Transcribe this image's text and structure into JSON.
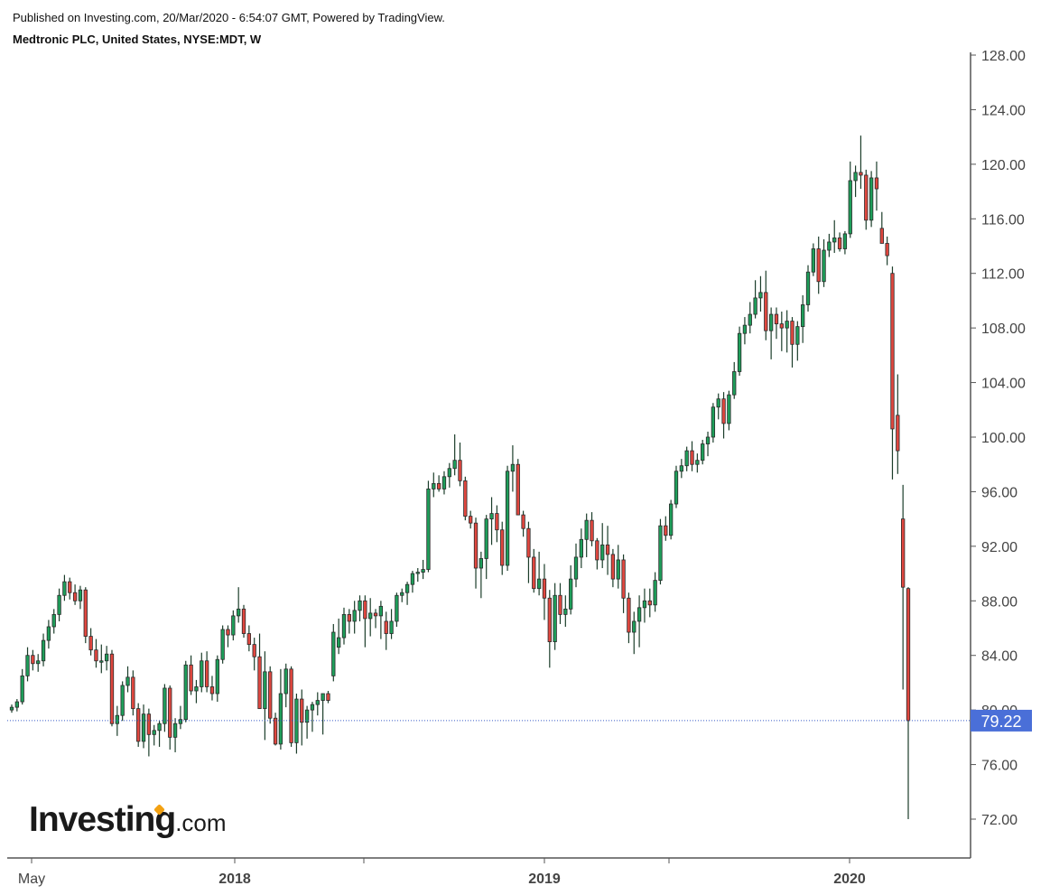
{
  "header": {
    "published": "Published on Investing.com, 20/Mar/2020 - 6:54:07 GMT, Powered by TradingView.",
    "title": "Medtronic PLC, United States, NYSE:MDT, W"
  },
  "logo": {
    "brand": "Investing",
    "tld": ".com",
    "accent_color": "#f3a112"
  },
  "colors": {
    "up": "#1e9e5a",
    "down": "#e0473f",
    "wick": "#1b3d2a",
    "last_price_bg": "#4a6fd8",
    "last_price_line": "#3a5cc8"
  },
  "chart_data": {
    "type": "candlestick",
    "interval": "W",
    "symbol": "NYSE:MDT",
    "ylim": [
      69,
      128
    ],
    "y_ticks": [
      "128.00",
      "124.00",
      "120.00",
      "116.00",
      "112.00",
      "108.00",
      "104.00",
      "100.00",
      "96.00",
      "92.00",
      "88.00",
      "84.00",
      "80.00",
      "76.00",
      "72.00"
    ],
    "x_labels": [
      {
        "text": "May",
        "bold": false
      },
      {
        "text": "2018",
        "bold": true
      },
      {
        "text": "2019",
        "bold": true
      },
      {
        "text": "2020",
        "bold": true
      }
    ],
    "last_price": "79.22",
    "candles": [
      [
        80.0,
        80.4,
        79.8,
        80.2
      ],
      [
        80.2,
        80.8,
        79.9,
        80.6
      ],
      [
        80.6,
        83.0,
        80.4,
        82.5
      ],
      [
        82.5,
        84.6,
        82.1,
        84.0
      ],
      [
        84.0,
        84.4,
        82.9,
        83.4
      ],
      [
        83.4,
        84.1,
        82.8,
        83.6
      ],
      [
        83.6,
        85.6,
        83.2,
        85.1
      ],
      [
        85.1,
        86.6,
        84.5,
        86.1
      ],
      [
        86.1,
        87.4,
        85.6,
        87.0
      ],
      [
        87.0,
        88.9,
        86.5,
        88.4
      ],
      [
        88.4,
        89.9,
        88.0,
        89.4
      ],
      [
        89.4,
        89.7,
        88.1,
        88.6
      ],
      [
        88.6,
        89.2,
        87.7,
        88.0
      ],
      [
        88.0,
        89.1,
        87.4,
        88.8
      ],
      [
        88.8,
        89.0,
        84.9,
        85.4
      ],
      [
        85.4,
        86.0,
        84.0,
        84.4
      ],
      [
        84.4,
        85.2,
        83.1,
        83.6
      ],
      [
        83.6,
        84.8,
        82.7,
        83.6
      ],
      [
        83.6,
        84.7,
        82.9,
        84.1
      ],
      [
        84.1,
        84.4,
        78.8,
        79.0
      ],
      [
        79.0,
        80.3,
        78.1,
        79.6
      ],
      [
        79.6,
        82.1,
        79.2,
        81.8
      ],
      [
        81.8,
        83.2,
        81.3,
        82.4
      ],
      [
        82.4,
        82.9,
        79.6,
        80.1
      ],
      [
        80.1,
        80.5,
        77.3,
        77.7
      ],
      [
        77.7,
        80.4,
        77.2,
        79.7
      ],
      [
        79.7,
        80.1,
        76.6,
        78.2
      ],
      [
        78.2,
        78.9,
        77.4,
        78.5
      ],
      [
        78.5,
        79.2,
        77.3,
        79.0
      ],
      [
        79.0,
        81.9,
        78.4,
        81.6
      ],
      [
        81.6,
        81.8,
        77.1,
        78.0
      ],
      [
        78.0,
        79.4,
        76.9,
        79.0
      ],
      [
        79.0,
        80.3,
        78.6,
        79.3
      ],
      [
        79.3,
        83.6,
        79.1,
        83.3
      ],
      [
        83.3,
        84.0,
        81.1,
        81.4
      ],
      [
        81.4,
        82.2,
        80.5,
        81.7
      ],
      [
        81.7,
        84.2,
        81.3,
        83.6
      ],
      [
        83.6,
        84.3,
        81.3,
        81.7
      ],
      [
        81.7,
        82.5,
        80.7,
        81.2
      ],
      [
        81.2,
        84.0,
        80.6,
        83.7
      ],
      [
        83.7,
        86.2,
        83.4,
        85.9
      ],
      [
        85.9,
        86.2,
        84.6,
        85.5
      ],
      [
        85.5,
        87.3,
        85.1,
        86.9
      ],
      [
        86.9,
        89.0,
        86.4,
        87.4
      ],
      [
        87.4,
        87.7,
        85.3,
        85.6
      ],
      [
        85.6,
        86.2,
        84.3,
        84.8
      ],
      [
        84.8,
        85.3,
        82.9,
        83.9
      ],
      [
        83.9,
        85.6,
        80.1,
        80.1
      ],
      [
        80.1,
        84.3,
        77.8,
        82.8
      ],
      [
        82.8,
        83.2,
        79.0,
        79.4
      ],
      [
        79.4,
        79.8,
        77.4,
        77.5
      ],
      [
        77.5,
        83.0,
        77.1,
        81.2
      ],
      [
        81.2,
        83.4,
        80.2,
        83.0
      ],
      [
        83.0,
        83.2,
        77.3,
        77.6
      ],
      [
        77.6,
        81.2,
        76.8,
        80.8
      ],
      [
        80.8,
        81.5,
        77.4,
        79.1
      ],
      [
        79.1,
        80.3,
        77.9,
        80.0
      ],
      [
        80.0,
        80.6,
        78.4,
        80.4
      ],
      [
        80.4,
        81.3,
        79.6,
        80.7
      ],
      [
        80.7,
        81.1,
        78.2,
        81.2
      ],
      [
        81.2,
        81.4,
        80.5,
        80.7
      ],
      [
        82.5,
        86.3,
        82.1,
        85.7
      ],
      [
        84.6,
        86.7,
        84.1,
        85.3
      ],
      [
        85.3,
        87.5,
        84.8,
        87.0
      ],
      [
        87.0,
        87.4,
        85.6,
        86.5
      ],
      [
        86.5,
        88.0,
        85.6,
        87.3
      ],
      [
        87.3,
        88.4,
        86.5,
        88.0
      ],
      [
        88.0,
        88.4,
        84.6,
        86.7
      ],
      [
        86.7,
        88.2,
        85.4,
        87.1
      ],
      [
        87.1,
        87.4,
        86.0,
        86.9
      ],
      [
        86.9,
        88.0,
        85.2,
        87.6
      ],
      [
        86.5,
        87.2,
        84.4,
        85.6
      ],
      [
        85.6,
        87.4,
        85.2,
        86.5
      ],
      [
        86.5,
        88.6,
        86.1,
        88.4
      ],
      [
        88.4,
        88.9,
        87.9,
        88.6
      ],
      [
        88.6,
        89.4,
        87.7,
        89.2
      ],
      [
        89.2,
        90.2,
        88.6,
        90.0
      ],
      [
        90.0,
        90.4,
        89.4,
        90.1
      ],
      [
        90.1,
        91.0,
        89.6,
        90.3
      ],
      [
        90.3,
        96.8,
        90.1,
        96.2
      ],
      [
        96.2,
        97.4,
        95.6,
        96.6
      ],
      [
        96.6,
        97.2,
        96.0,
        96.2
      ],
      [
        96.2,
        97.5,
        95.8,
        97.1
      ],
      [
        97.1,
        98.1,
        96.3,
        97.7
      ],
      [
        97.7,
        100.2,
        97.2,
        98.3
      ],
      [
        98.3,
        99.6,
        96.4,
        96.8
      ],
      [
        96.8,
        97.1,
        93.9,
        94.2
      ],
      [
        94.2,
        94.6,
        93.3,
        93.7
      ],
      [
        93.7,
        94.1,
        88.9,
        90.4
      ],
      [
        90.4,
        91.6,
        88.2,
        91.1
      ],
      [
        91.1,
        94.3,
        89.6,
        94.0
      ],
      [
        94.0,
        95.6,
        92.1,
        94.4
      ],
      [
        94.4,
        95.0,
        92.3,
        93.2
      ],
      [
        93.2,
        93.8,
        89.9,
        90.6
      ],
      [
        90.6,
        97.9,
        90.2,
        97.5
      ],
      [
        97.5,
        99.4,
        96.0,
        98.0
      ],
      [
        98.0,
        98.4,
        94.4,
        94.3
      ],
      [
        94.3,
        94.6,
        92.7,
        93.3
      ],
      [
        93.3,
        93.8,
        89.3,
        91.2
      ],
      [
        91.2,
        91.8,
        88.6,
        88.9
      ],
      [
        88.9,
        91.6,
        88.4,
        89.6
      ],
      [
        89.6,
        90.7,
        86.6,
        88.2
      ],
      [
        88.2,
        88.8,
        83.1,
        85.0
      ],
      [
        85.0,
        89.3,
        84.4,
        88.4
      ],
      [
        88.4,
        89.3,
        86.3,
        87.0
      ],
      [
        87.0,
        88.4,
        86.1,
        87.4
      ],
      [
        87.4,
        90.6,
        87.0,
        89.6
      ],
      [
        89.6,
        92.2,
        89.0,
        91.2
      ],
      [
        91.2,
        93.3,
        90.4,
        92.5
      ],
      [
        92.5,
        94.4,
        91.2,
        93.9
      ],
      [
        93.9,
        94.5,
        92.0,
        92.4
      ],
      [
        92.4,
        92.6,
        90.3,
        91.0
      ],
      [
        91.0,
        93.7,
        90.4,
        92.1
      ],
      [
        92.1,
        93.5,
        89.9,
        91.4
      ],
      [
        91.4,
        91.8,
        89.0,
        89.6
      ],
      [
        89.6,
        92.1,
        88.9,
        91.0
      ],
      [
        91.0,
        91.4,
        87.1,
        88.2
      ],
      [
        88.2,
        88.6,
        84.9,
        85.7
      ],
      [
        85.7,
        87.2,
        84.1,
        86.5
      ],
      [
        86.5,
        88.4,
        84.6,
        87.5
      ],
      [
        87.5,
        88.9,
        86.4,
        88.0
      ],
      [
        88.0,
        88.9,
        86.8,
        87.7
      ],
      [
        87.7,
        90.1,
        87.2,
        89.5
      ],
      [
        89.5,
        94.0,
        89.2,
        93.5
      ],
      [
        93.5,
        94.2,
        92.4,
        92.8
      ],
      [
        92.8,
        95.4,
        92.5,
        95.1
      ],
      [
        95.1,
        97.9,
        94.8,
        97.5
      ],
      [
        97.5,
        98.4,
        97.0,
        97.9
      ],
      [
        97.9,
        99.3,
        97.5,
        99.0
      ],
      [
        99.0,
        99.7,
        97.5,
        98.0
      ],
      [
        98.0,
        98.8,
        97.4,
        98.3
      ],
      [
        98.3,
        99.8,
        98.0,
        99.5
      ],
      [
        99.5,
        100.4,
        98.6,
        100.0
      ],
      [
        100.0,
        102.5,
        99.6,
        102.2
      ],
      [
        102.2,
        103.2,
        101.3,
        102.8
      ],
      [
        102.8,
        103.3,
        99.9,
        101.0
      ],
      [
        101.0,
        103.4,
        100.5,
        103.1
      ],
      [
        103.1,
        105.5,
        102.8,
        104.8
      ],
      [
        104.8,
        108.1,
        104.5,
        107.6
      ],
      [
        107.6,
        108.8,
        106.8,
        108.2
      ],
      [
        108.2,
        109.9,
        107.6,
        109.0
      ],
      [
        109.0,
        111.5,
        108.7,
        110.2
      ],
      [
        110.2,
        111.8,
        109.2,
        110.6
      ],
      [
        110.6,
        112.2,
        107.1,
        107.8
      ],
      [
        107.8,
        109.5,
        105.7,
        109.0
      ],
      [
        109.0,
        109.5,
        107.2,
        108.3
      ],
      [
        108.3,
        109.2,
        106.3,
        108.0
      ],
      [
        108.0,
        109.3,
        106.2,
        108.5
      ],
      [
        108.5,
        108.8,
        105.1,
        106.8
      ],
      [
        106.8,
        108.5,
        105.6,
        108.1
      ],
      [
        108.1,
        110.4,
        106.9,
        109.7
      ],
      [
        109.7,
        112.6,
        109.2,
        112.1
      ],
      [
        112.1,
        114.2,
        111.8,
        113.8
      ],
      [
        113.8,
        114.7,
        110.5,
        111.4
      ],
      [
        111.4,
        114.5,
        111.0,
        113.7
      ],
      [
        113.7,
        114.9,
        113.2,
        114.3
      ],
      [
        114.3,
        115.9,
        113.5,
        114.6
      ],
      [
        114.6,
        115.0,
        113.6,
        113.8
      ],
      [
        113.8,
        115.1,
        113.4,
        114.9
      ],
      [
        114.9,
        120.2,
        114.6,
        118.8
      ],
      [
        118.8,
        119.9,
        117.6,
        119.4
      ],
      [
        119.4,
        122.1,
        118.2,
        119.2
      ],
      [
        119.2,
        119.6,
        115.2,
        115.9
      ],
      [
        115.9,
        119.5,
        115.4,
        119.0
      ],
      [
        119.0,
        120.2,
        116.6,
        118.2
      ],
      [
        115.3,
        116.5,
        114.2,
        114.2
      ],
      [
        114.2,
        114.7,
        112.6,
        113.3
      ],
      [
        112.0,
        112.5,
        96.9,
        100.6
      ],
      [
        101.6,
        104.6,
        97.3,
        99.0
      ],
      [
        94.0,
        96.5,
        81.5,
        89.0
      ],
      [
        88.9,
        89.0,
        72.0,
        79.22
      ]
    ]
  }
}
